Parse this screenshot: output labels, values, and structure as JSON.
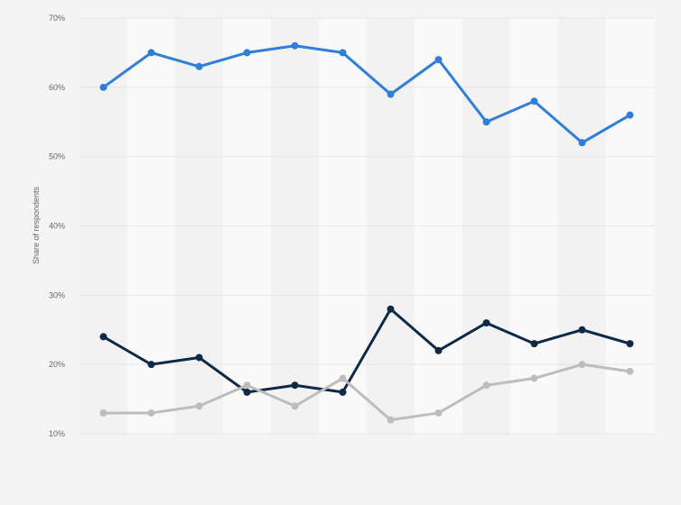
{
  "chart_data": {
    "type": "line",
    "title": "",
    "xlabel": "",
    "ylabel": "Share of respondents",
    "ylim": [
      10,
      70
    ],
    "yticks": [
      "10%",
      "20%",
      "30%",
      "40%",
      "50%",
      "60%",
      "70%"
    ],
    "ytick_values": [
      10,
      20,
      30,
      40,
      50,
      60,
      70
    ],
    "grid": true,
    "x": [
      1,
      2,
      3,
      4,
      5,
      6,
      7,
      8,
      9,
      10,
      11,
      12
    ],
    "series": [
      {
        "color": "#2f7ed8",
        "values": [
          60,
          65,
          63,
          65,
          66,
          65,
          59,
          64,
          55,
          58,
          52,
          56
        ]
      },
      {
        "color": "#0f2a47",
        "values": [
          24,
          20,
          21,
          16,
          17,
          16,
          28,
          22,
          26,
          23,
          25,
          23
        ]
      },
      {
        "color": "#bdbdbd",
        "values": [
          13,
          13,
          14,
          17,
          14,
          18,
          12,
          13,
          17,
          18,
          20,
          19
        ]
      }
    ]
  }
}
